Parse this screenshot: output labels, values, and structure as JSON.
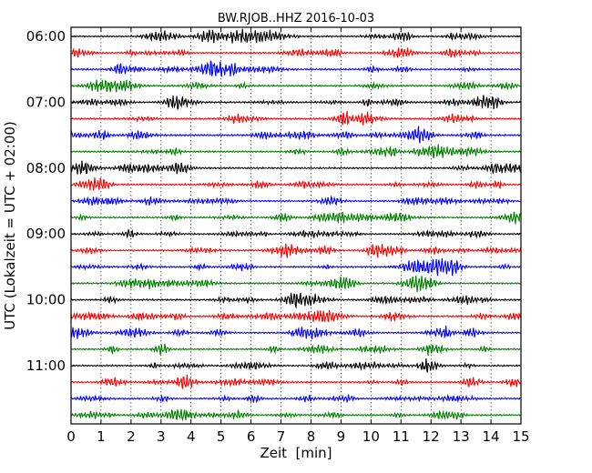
{
  "chart_data": {
    "type": "line",
    "title": "BW.RJOB..HHZ 2016-10-03",
    "xlabel": "Zeit  [min]",
    "ylabel": "UTC (Lokalzeit = UTC + 02:00)",
    "xlim": [
      0,
      15
    ],
    "x_ticks": [
      "0",
      "1",
      "2",
      "3",
      "4",
      "5",
      "6",
      "7",
      "8",
      "9",
      "10",
      "11",
      "12",
      "13",
      "14",
      "15"
    ],
    "y_tick_labels": [
      "06:00",
      "07:00",
      "08:00",
      "09:00",
      "10:00",
      "11:00"
    ],
    "y_tick_row_index": [
      0,
      4,
      8,
      12,
      16,
      20
    ],
    "traces_start": "06:00",
    "trace_interval_minutes": 15,
    "trace_count": 24,
    "trace_colors": [
      "#000000",
      "#ff0000",
      "#0000ff",
      "#008000"
    ],
    "grid": "vertical dotted at every minute",
    "legend": "none"
  }
}
